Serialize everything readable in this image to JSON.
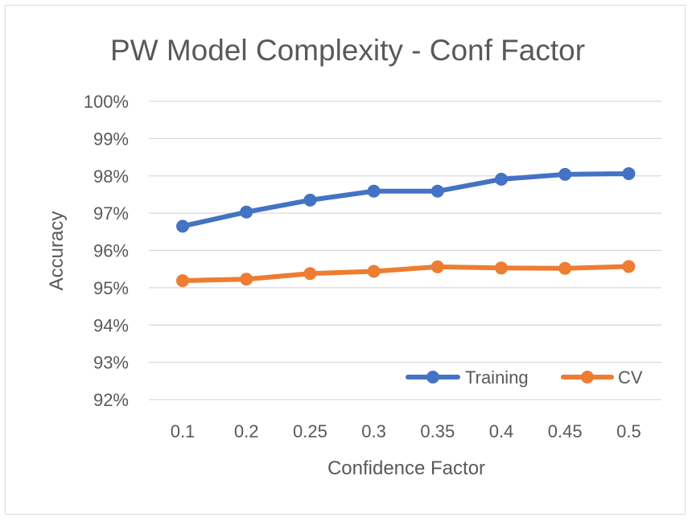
{
  "chart_data": {
    "type": "line",
    "title": "PW Model Complexity - Conf Factor",
    "xlabel": "Confidence Factor",
    "ylabel": "Accuracy",
    "categories": [
      "0.1",
      "0.2",
      "0.25",
      "0.3",
      "0.35",
      "0.4",
      "0.45",
      "0.5"
    ],
    "ylim": [
      0.92,
      1.0
    ],
    "yticks": [
      {
        "value": 1.0,
        "label": "100%"
      },
      {
        "value": 0.99,
        "label": "99%"
      },
      {
        "value": 0.98,
        "label": "98%"
      },
      {
        "value": 0.97,
        "label": "97%"
      },
      {
        "value": 0.96,
        "label": "96%"
      },
      {
        "value": 0.95,
        "label": "95%"
      },
      {
        "value": 0.94,
        "label": "94%"
      },
      {
        "value": 0.93,
        "label": "93%"
      },
      {
        "value": 0.92,
        "label": "92%"
      }
    ],
    "grid": true,
    "legend_position": "bottom-right",
    "series": [
      {
        "name": "Training",
        "color": "#4472c4",
        "values": [
          0.9665,
          0.9703,
          0.9735,
          0.9759,
          0.9759,
          0.9791,
          0.9804,
          0.9806
        ]
      },
      {
        "name": "CV",
        "color": "#ed7d31",
        "values": [
          0.9519,
          0.9523,
          0.9538,
          0.9544,
          0.9556,
          0.9553,
          0.9552,
          0.9557
        ]
      }
    ]
  }
}
